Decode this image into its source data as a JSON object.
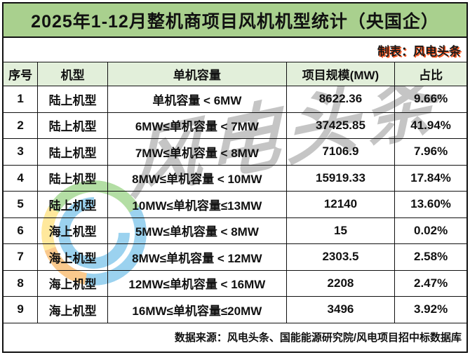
{
  "title": "2025年1-12月整机商项目风机机型统计（央国企）",
  "subtitle": "制表：风电头条",
  "watermark": {
    "text": "风电头条"
  },
  "table": {
    "headers": [
      "序号",
      "机型",
      "单机容量",
      "项目规模(MW)",
      "占比"
    ],
    "rows": [
      [
        "1",
        "陆上机型",
        "单机容量 < 6MW",
        "8622.36",
        "9.66%"
      ],
      [
        "2",
        "陆上机型",
        "6MW≤单机容量 < 7MW",
        "37425.85",
        "41.94%"
      ],
      [
        "3",
        "陆上机型",
        "7MW≤单机容量 < 8MW",
        "7106.9",
        "7.96%"
      ],
      [
        "4",
        "陆上机型",
        "8MW≤单机容量 < 10MW",
        "15919.33",
        "17.84%"
      ],
      [
        "5",
        "陆上机型",
        "10MW≤单机容量≤13MW",
        "12140",
        "13.60%"
      ],
      [
        "6",
        "海上机型",
        "5MW≤单机容量 < 8MW",
        "15",
        "0.02%"
      ],
      [
        "7",
        "海上机型",
        "8MW≤单机容量 < 12MW",
        "2303.5",
        "2.58%"
      ],
      [
        "8",
        "海上机型",
        "12MW≤单机容量 < 16MW",
        "2208",
        "2.47%"
      ],
      [
        "9",
        "海上机型",
        "16MW≤单机容量≤20MW",
        "3496",
        "3.92%"
      ]
    ]
  },
  "footer": "数据来源：风电头条、国能能源研究院/风电项目招中标数据库",
  "colors": {
    "title_bg": "#a9d08e",
    "header_bg": "#e2efda",
    "border": "#111111",
    "subtitle_shadow": "#ff4000",
    "watermark_gray": "#6e6e6e",
    "logo_green": "#6abf4b",
    "logo_blue": "#3aa7e0",
    "logo_orange": "#f7941e",
    "logo_yellow": "#ffd23c"
  }
}
